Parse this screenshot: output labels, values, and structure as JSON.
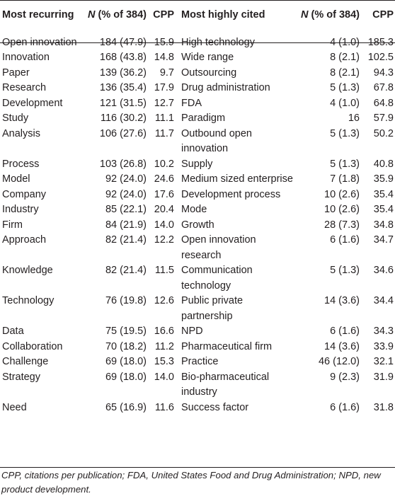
{
  "table": {
    "headers": {
      "col1": "Most recurring",
      "col2_italic": "N",
      "col2_rest": " (% of 384)",
      "col3": "CPP",
      "col4": "Most highly cited",
      "col5_italic": "N",
      "col5_rest": " (% of 384)",
      "col6": "CPP"
    },
    "rows": [
      {
        "term1": "Open innovation",
        "n1": "184 (47.9)",
        "cpp1": "15.9",
        "term2": "High technology",
        "n2": "4 (1.0)",
        "cpp2": "185.3"
      },
      {
        "term1": "Innovation",
        "n1": "168 (43.8)",
        "cpp1": "14.8",
        "term2": "Wide range",
        "n2": "8 (2.1)",
        "cpp2": "102.5"
      },
      {
        "term1": "Paper",
        "n1": "139 (36.2)",
        "cpp1": "9.7",
        "term2": "Outsourcing",
        "n2": "8 (2.1)",
        "cpp2": "94.3"
      },
      {
        "term1": "Research",
        "n1": "136 (35.4)",
        "cpp1": "17.9",
        "term2": "Drug administration",
        "n2": "5 (1.3)",
        "cpp2": "67.8"
      },
      {
        "term1": "Development",
        "n1": "121 (31.5)",
        "cpp1": "12.7",
        "term2": "FDA",
        "n2": "4 (1.0)",
        "cpp2": "64.8"
      },
      {
        "term1": "Study",
        "n1": "116 (30.2)",
        "cpp1": "11.1",
        "term2": "Paradigm",
        "n2": "16",
        "cpp2": "57.9"
      },
      {
        "term1": "Analysis",
        "n1": "106 (27.6)",
        "cpp1": "11.7",
        "term2": "Outbound open innovation",
        "n2": "5 (1.3)",
        "cpp2": "50.2"
      },
      {
        "term1": "Process",
        "n1": "103 (26.8)",
        "cpp1": "10.2",
        "term2": "Supply",
        "n2": "5 (1.3)",
        "cpp2": "40.8"
      },
      {
        "term1": "Model",
        "n1": "92 (24.0)",
        "cpp1": "24.6",
        "term2": "Medium sized enterprise",
        "n2": "7 (1.8)",
        "cpp2": "35.9"
      },
      {
        "term1": "Company",
        "n1": "92 (24.0)",
        "cpp1": "17.6",
        "term2": "Development process",
        "n2": "10 (2.6)",
        "cpp2": "35.4"
      },
      {
        "term1": "Industry",
        "n1": "85 (22.1)",
        "cpp1": "20.4",
        "term2": "Mode",
        "n2": "10 (2.6)",
        "cpp2": "35.4"
      },
      {
        "term1": "Firm",
        "n1": "84 (21.9)",
        "cpp1": "14.0",
        "term2": "Growth",
        "n2": "28 (7.3)",
        "cpp2": "34.8"
      },
      {
        "term1": "Approach",
        "n1": "82 (21.4)",
        "cpp1": "12.2",
        "term2": "Open innovation research",
        "n2": "6 (1.6)",
        "cpp2": "34.7"
      },
      {
        "term1": "Knowledge",
        "n1": "82 (21.4)",
        "cpp1": "11.5",
        "term2": "Communication technology",
        "n2": "5 (1.3)",
        "cpp2": "34.6"
      },
      {
        "term1": "Technology",
        "n1": "76 (19.8)",
        "cpp1": "12.6",
        "term2": "Public private partnership",
        "n2": "14 (3.6)",
        "cpp2": "34.4"
      },
      {
        "term1": "Data",
        "n1": "75 (19.5)",
        "cpp1": "16.6",
        "term2": "NPD",
        "n2": "6 (1.6)",
        "cpp2": "34.3"
      },
      {
        "term1": "Collaboration",
        "n1": "70 (18.2)",
        "cpp1": "11.2",
        "term2": "Pharmaceutical firm",
        "n2": "14 (3.6)",
        "cpp2": "33.9"
      },
      {
        "term1": "Challenge",
        "n1": "69 (18.0)",
        "cpp1": "15.3",
        "term2": "Practice",
        "n2": "46 (12.0)",
        "cpp2": "32.1"
      },
      {
        "term1": "Strategy",
        "n1": "69 (18.0)",
        "cpp1": "14.0",
        "term2": "Bio-pharmaceutical industry",
        "n2": "9 (2.3)",
        "cpp2": "31.9"
      },
      {
        "term1": "Need",
        "n1": "65 (16.9)",
        "cpp1": "11.6",
        "term2": "Success factor",
        "n2": "6 (1.6)",
        "cpp2": "31.8"
      }
    ]
  },
  "footnote": "CPP, citations per publication; FDA, United States Food and Drug Administration; NPD, new product development."
}
